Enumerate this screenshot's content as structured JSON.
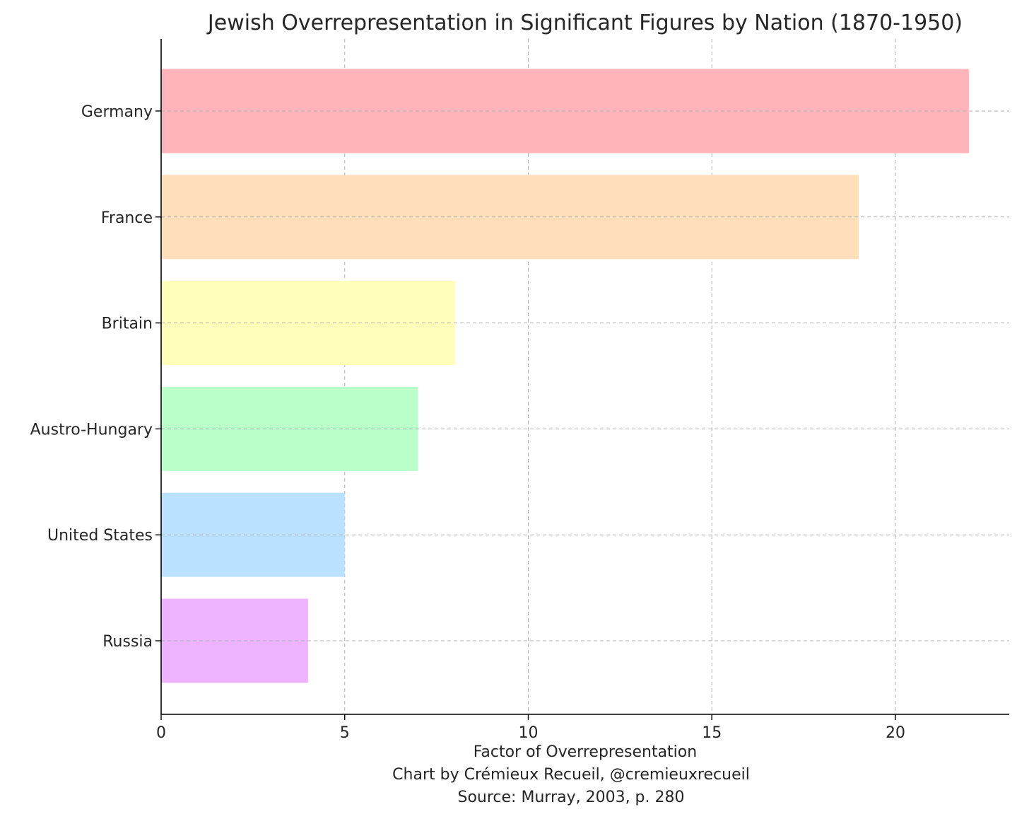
{
  "chart_data": {
    "type": "bar",
    "orientation": "horizontal",
    "title": "Jewish Overrepresentation in Significant Figures by Nation (1870-1950)",
    "xlabel": "Factor of Overrepresentation",
    "caption_lines": [
      "Chart by Crémieux Recueil, @cremieuxrecueil",
      "Source: Murray, 2003, p. 280"
    ],
    "ylabel": "",
    "categories": [
      "Germany",
      "France",
      "Britain",
      "Austro-Hungary",
      "United States",
      "Russia"
    ],
    "values": [
      22,
      19,
      8,
      7,
      5,
      4
    ],
    "colors": [
      "#ffb3ba",
      "#ffdfba",
      "#ffffba",
      "#baffc9",
      "#bae1ff",
      "#eeb3ff"
    ],
    "xlim": [
      0,
      23.1
    ],
    "xticks": [
      0,
      5,
      10,
      15,
      20
    ],
    "grid": true,
    "legend": "none"
  }
}
